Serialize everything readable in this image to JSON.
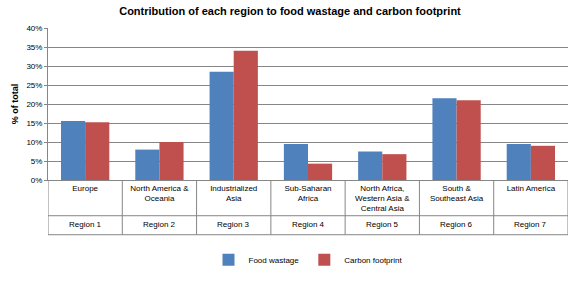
{
  "chart_data": {
    "type": "bar",
    "title": "Contribution of each region to food wastage and carbon footprint",
    "y_label": "% of total",
    "categories": [
      "Europe",
      "North America & Oceania",
      "Industrialized Asia",
      "Sub-Saharan Africa",
      "North Africa, Western Asia & Central Asia",
      "South & Southeast Asia",
      "Latin America"
    ],
    "category_groups": [
      "Region 1",
      "Region 2",
      "Region 3",
      "Region 4",
      "Region 5",
      "Region 6",
      "Region 7"
    ],
    "series": [
      {
        "name": "Food wastage",
        "color": "#4f81bd",
        "values": [
          15.5,
          8,
          28.5,
          9.5,
          7.5,
          21.5,
          9.5
        ]
      },
      {
        "name": "Carbon footprint",
        "color": "#c0504d",
        "values": [
          15.2,
          10,
          34,
          4.3,
          6.8,
          21,
          9
        ]
      }
    ],
    "ylim": [
      0,
      40
    ],
    "yticks": [
      {
        "value": 0,
        "label": "0%"
      },
      {
        "value": 5,
        "label": "5%"
      },
      {
        "value": 10,
        "label": "10%"
      },
      {
        "value": 15,
        "label": "15%"
      },
      {
        "value": 20,
        "label": "20%"
      },
      {
        "value": 25,
        "label": "25%"
      },
      {
        "value": 30,
        "label": "30%"
      },
      {
        "value": 35,
        "label": "35%"
      },
      {
        "value": 40,
        "label": "40%"
      }
    ],
    "grid": true,
    "legend": "bottom"
  }
}
